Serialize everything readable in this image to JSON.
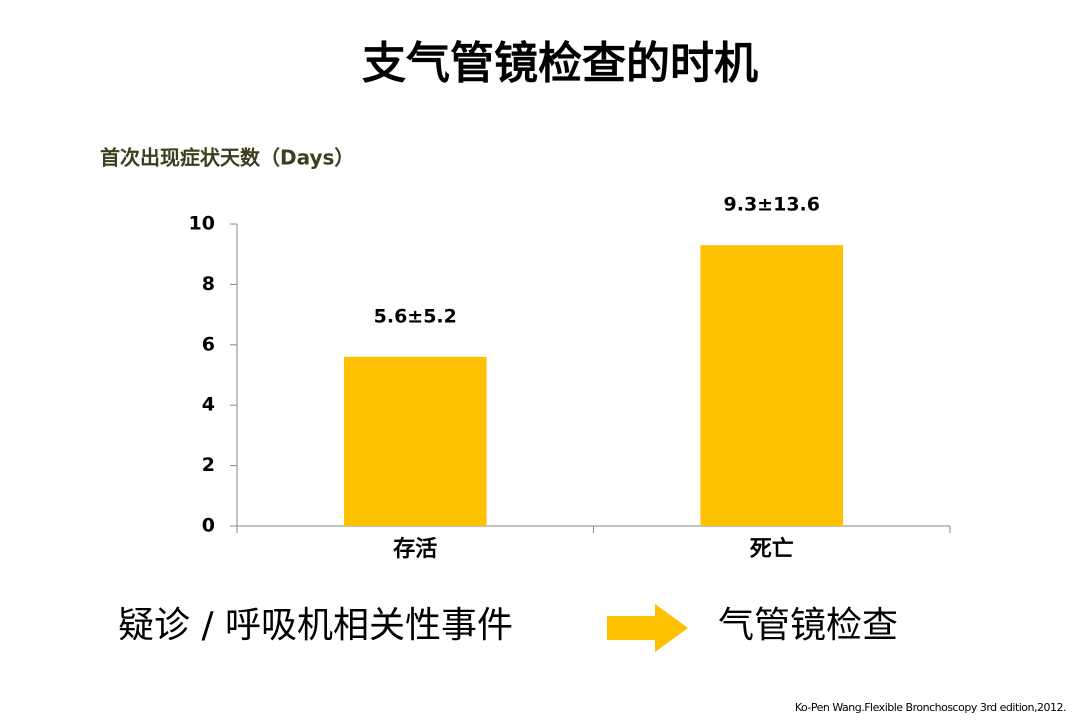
{
  "chart_data": {
    "type": "bar",
    "title": "支气管镜检查的时机",
    "ylabel": "首次出现症状天数（Days）",
    "categories": [
      "存活",
      "死亡"
    ],
    "values": [
      5.6,
      9.3
    ],
    "value_labels": [
      "5.6±5.2",
      "9.3±13.6"
    ],
    "color": "#ffc000",
    "ylim": [
      0,
      10
    ],
    "yticks": [
      0,
      2,
      4,
      6,
      8,
      10
    ],
    "grid": false
  },
  "footer": {
    "left": "疑诊 / 呼吸机相关性事件",
    "right": "气管镜检查",
    "source": "Ko-Pen Wang.Flexible Bronchoscopy 3rd edition,2012."
  }
}
